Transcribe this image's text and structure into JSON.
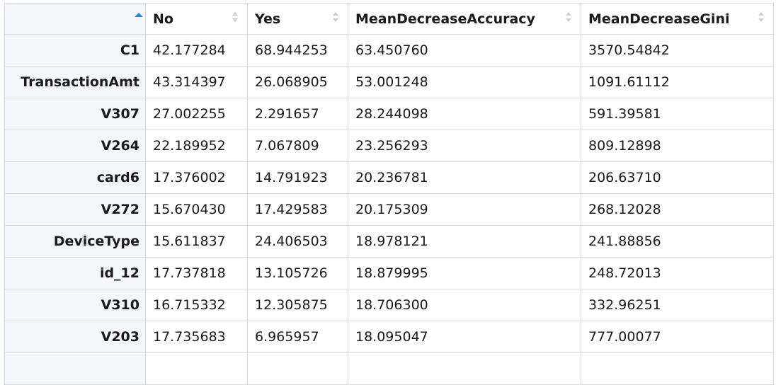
{
  "table": {
    "sorted_column": "rownames",
    "sort_direction": "ascending",
    "columns": [
      {
        "key": "No",
        "label": "No"
      },
      {
        "key": "Yes",
        "label": "Yes"
      },
      {
        "key": "MeanDecreaseAccuracy",
        "label": "MeanDecreaseAccuracy"
      },
      {
        "key": "MeanDecreaseGini",
        "label": "MeanDecreaseGini"
      }
    ],
    "rows": [
      {
        "name": "C1",
        "No": "42.177284",
        "Yes": "68.944253",
        "MeanDecreaseAccuracy": "63.450760",
        "MeanDecreaseGini": "3570.54842"
      },
      {
        "name": "TransactionAmt",
        "No": "43.314397",
        "Yes": "26.068905",
        "MeanDecreaseAccuracy": "53.001248",
        "MeanDecreaseGini": "1091.61112"
      },
      {
        "name": "V307",
        "No": "27.002255",
        "Yes": "2.291657",
        "MeanDecreaseAccuracy": "28.244098",
        "MeanDecreaseGini": "591.39581"
      },
      {
        "name": "V264",
        "No": "22.189952",
        "Yes": "7.067809",
        "MeanDecreaseAccuracy": "23.256293",
        "MeanDecreaseGini": "809.12898"
      },
      {
        "name": "card6",
        "No": "17.376002",
        "Yes": "14.791923",
        "MeanDecreaseAccuracy": "20.236781",
        "MeanDecreaseGini": "206.63710"
      },
      {
        "name": "V272",
        "No": "15.670430",
        "Yes": "17.429583",
        "MeanDecreaseAccuracy": "20.175309",
        "MeanDecreaseGini": "268.12028"
      },
      {
        "name": "DeviceType",
        "No": "15.611837",
        "Yes": "24.406503",
        "MeanDecreaseAccuracy": "18.978121",
        "MeanDecreaseGini": "241.88856"
      },
      {
        "name": "id_12",
        "No": "17.737818",
        "Yes": "13.105726",
        "MeanDecreaseAccuracy": "18.879995",
        "MeanDecreaseGini": "248.72013"
      },
      {
        "name": "V310",
        "No": "16.715332",
        "Yes": "12.305875",
        "MeanDecreaseAccuracy": "18.706300",
        "MeanDecreaseGini": "332.96251"
      },
      {
        "name": "V203",
        "No": "17.735683",
        "Yes": "6.965957",
        "MeanDecreaseAccuracy": "18.095047",
        "MeanDecreaseGini": "777.00077"
      }
    ]
  },
  "colors": {
    "sort_active": "#2f80d8",
    "sort_inactive": "#c8cdd4",
    "border": "#d9dde3",
    "rowname_bg": "#f4f6f9"
  }
}
